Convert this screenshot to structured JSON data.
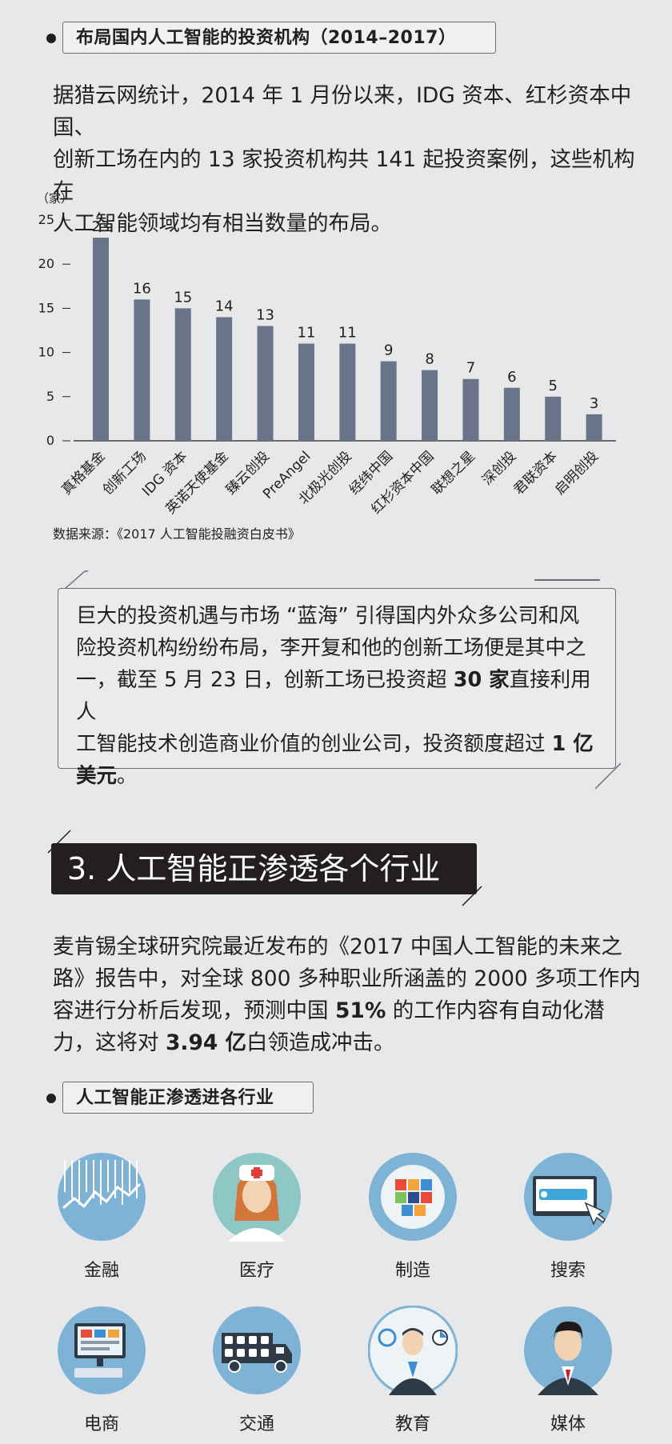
{
  "section1": {
    "heading": "布局国内人工智能的投资机构（2014–2017）",
    "paragraph": [
      "据猎云网统计，2014 年 1 月份以来，IDG 资本、红杉资本中国、",
      "创新工场在内的 13 家投资机构共 141 起投资案例，这些机构在",
      "人工智能领域均有相当数量的布局。"
    ],
    "source": "数据来源：《2017 人工智能投融资白皮书》"
  },
  "chart_data": {
    "type": "bar",
    "ylabel": "（家）",
    "ylim": [
      0,
      25
    ],
    "yticks": [
      0,
      5,
      10,
      15,
      20,
      25
    ],
    "categories": [
      "真格基金",
      "创新工场",
      "IDG 资本",
      "英诺天使基金",
      "臻云创投",
      "PreAngel",
      "北极光创投",
      "经纬中国",
      "红杉资本中国",
      "联想之星",
      "深创投",
      "君联资本",
      "启明创投"
    ],
    "values": [
      23,
      16,
      15,
      14,
      13,
      11,
      11,
      9,
      8,
      7,
      6,
      5,
      3
    ],
    "bar_color": "#6a7489",
    "grid": false
  },
  "quote": {
    "line1": "巨大的投资机遇与市场 “蓝海” 引得国内外众多公司和风",
    "line2": "险投资机构纷纷布局，李开复和他的创新工场便是其中之",
    "line3": "一，截至 5 月 23 日，创新工场已投资超 ",
    "bold1": "30 家",
    "line3b": "直接利用人",
    "line4": "工智能技术创造商业价值的创业公司，投资额度超过 ",
    "bold2": "1 亿",
    "bold3": "美元",
    "line5end": "。"
  },
  "section3": {
    "title": "3. 人工智能正渗透各个行业",
    "p1": "麦肯锡全球研究院最近发布的《2017 中国人工智能的未来之",
    "p2": "路》报告中，对全球 800 多种职业所涵盖的 2000 多项工作内",
    "p3a": "容进行分析后发现，预测中国 ",
    "p3b": "51%",
    "p3c": " 的工作内容有自动化潜",
    "p4a": "力，这将对 ",
    "p4b": "3.94 亿",
    "p4c": "白领造成冲击。",
    "heading": "人工智能正渗透进各行业"
  },
  "industries": [
    {
      "label": "金融",
      "icon": "finance-chart-icon"
    },
    {
      "label": "医疗",
      "icon": "nurse-icon"
    },
    {
      "label": "制造",
      "icon": "puzzle-team-icon"
    },
    {
      "label": "搜索",
      "icon": "search-screen-icon"
    },
    {
      "label": "电商",
      "icon": "ecommerce-computer-icon"
    },
    {
      "label": "交通",
      "icon": "truck-icon"
    },
    {
      "label": "教育",
      "icon": "teacher-icon"
    },
    {
      "label": "媒体",
      "icon": "presenter-icon"
    }
  ],
  "colors": {
    "background": "#e6e8ea",
    "dark": "#231f20",
    "icon_blue": "#7fb3d6",
    "bar": "#6a7489"
  }
}
